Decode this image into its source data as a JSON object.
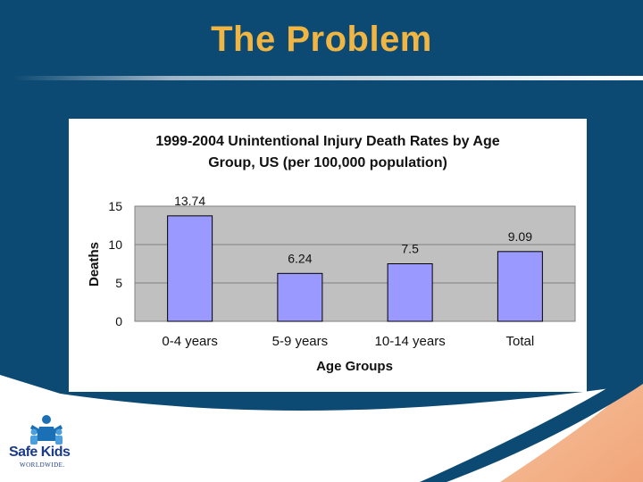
{
  "slide": {
    "title": "The Problem"
  },
  "logo": {
    "name": "Safe Kids",
    "tagline": "WORLDWIDE."
  },
  "colors": {
    "background": "#0d4a73",
    "title": "#f1b543",
    "bar_fill": "#9999ff",
    "plot_area": "#c0c0c0"
  },
  "chart_data": {
    "type": "bar",
    "title_lines": [
      "1999-2004 Unintentional Injury Death Rates by Age",
      "Group, US (per 100,000 population)"
    ],
    "categories": [
      "0-4 years",
      "5-9 years",
      "10-14 years",
      "Total"
    ],
    "values": [
      13.74,
      6.24,
      7.5,
      9.09
    ],
    "data_labels": [
      "13.74",
      "6.24",
      "7.5",
      "9.09"
    ],
    "xlabel": "Age Groups",
    "ylabel": "Deaths",
    "ylim": [
      0,
      15
    ],
    "yticks": [
      0,
      5,
      10,
      15
    ],
    "grid": true,
    "legend": "none"
  }
}
